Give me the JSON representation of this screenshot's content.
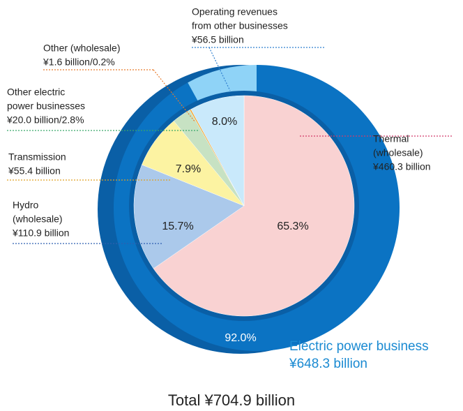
{
  "chart_data": {
    "type": "pie",
    "categories": [
      [
        "Thermal",
        "(wholesale)"
      ],
      [
        "Hydro",
        "(wholesale)"
      ],
      [
        "Transmission"
      ],
      [
        "Other electric",
        "power businesses"
      ],
      [
        "Other (wholesale)"
      ],
      [
        "Operating revenues",
        "from other businesses"
      ]
    ],
    "values": [
      65.3,
      15.7,
      7.9,
      2.8,
      0.2,
      8.0
    ],
    "value_labels": [
      "65.3%",
      "15.7%",
      "7.9%",
      null,
      null,
      "8.0%"
    ],
    "amount_labels": [
      "¥460.3 billion",
      "¥110.9 billion",
      "¥55.4 billion",
      "¥20.0 billion/2.8%",
      "¥1.6 billion/0.2%",
      "¥56.5 billion"
    ],
    "colors": [
      "#f9d2d2",
      "#abc9eb",
      "#fcf3a2",
      "#c7e2c3",
      "#f2a32c",
      "#c9e9fb"
    ],
    "ring": {
      "values": [
        92.0,
        8.0
      ],
      "value_labels": [
        "92.0%",
        null
      ],
      "colors": [
        "#0b73c3",
        "#8fd3f7"
      ],
      "name": "Electric power business",
      "amount_label": "¥648.3 billion"
    },
    "total_label": "Total  ¥704.9 billion"
  }
}
